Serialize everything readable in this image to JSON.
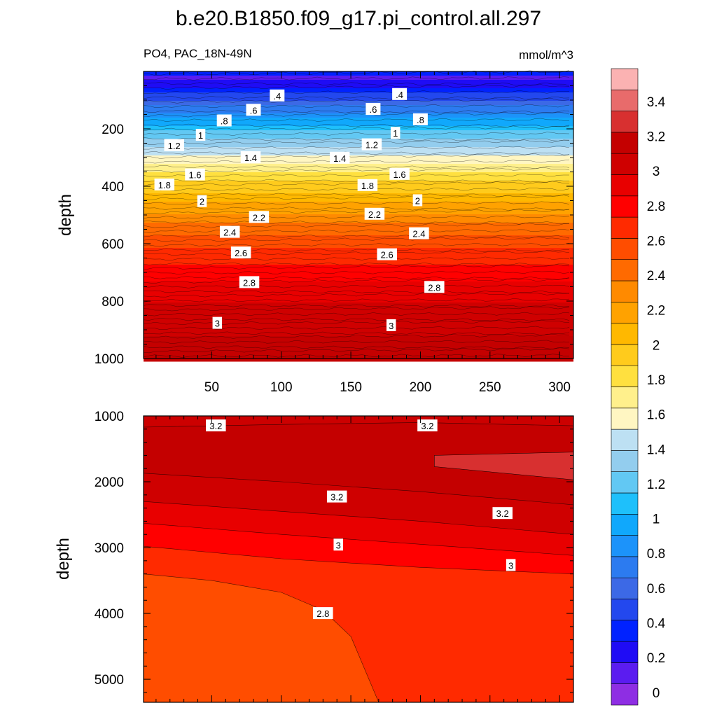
{
  "figure": {
    "title": "b.e20.B1850.f09_g17.pi_control.all.297",
    "left_string": "PO4, PAC_18N-49N",
    "units": "mmol/m^3"
  },
  "colors": {
    "levels": [
      0,
      0.2,
      0.4,
      0.6,
      0.8,
      1,
      1.2,
      1.4,
      1.6,
      1.8,
      2,
      2.2,
      2.4,
      2.6,
      2.8,
      3,
      3.2,
      3.4
    ],
    "fill": [
      "#8e2ee3",
      "#5b1cf0",
      "#1f0cf5",
      "#0022ff",
      "#2348ee",
      "#3c69e6",
      "#2c7bf0",
      "#1c93fa",
      "#10a8fc",
      "#1ec0fb",
      "#62c8f3",
      "#93cdee",
      "#bde0f3",
      "#fff6c2",
      "#fff08c",
      "#ffe03f",
      "#ffcb1c",
      "#ffb800",
      "#ffa200",
      "#ff8a00",
      "#ff6a00",
      "#ff4d00",
      "#ff2a00",
      "#ff0000",
      "#e80000",
      "#cf0000",
      "#c40000",
      "#d83030",
      "#e86b6b",
      "#fbb2b2"
    ]
  },
  "chart_data": [
    {
      "type": "heatmap",
      "panel": "upper",
      "variable": "PO4",
      "ylabel": "depth",
      "xlim": [
        1,
        310
      ],
      "ylim": [
        1000,
        0
      ],
      "x_ticks": [
        50,
        100,
        150,
        200,
        250,
        300
      ],
      "y_ticks": [
        200,
        400,
        600,
        800,
        1000
      ],
      "depth_profile": [
        [
          0,
          0.0
        ],
        [
          50,
          0.2
        ],
        [
          100,
          0.5
        ],
        [
          150,
          0.8
        ],
        [
          200,
          1.05
        ],
        [
          250,
          1.3
        ],
        [
          300,
          1.5
        ],
        [
          340,
          1.65
        ],
        [
          380,
          1.8
        ],
        [
          420,
          1.95
        ],
        [
          460,
          2.1
        ],
        [
          500,
          2.2
        ],
        [
          550,
          2.35
        ],
        [
          600,
          2.5
        ],
        [
          650,
          2.6
        ],
        [
          700,
          2.75
        ],
        [
          750,
          2.8
        ],
        [
          800,
          2.9
        ],
        [
          850,
          2.95
        ],
        [
          900,
          3.0
        ],
        [
          950,
          3.05
        ],
        [
          1000,
          3.1
        ]
      ],
      "contour_labels": [
        {
          "x": 97,
          "depth": 85,
          "value": ".4"
        },
        {
          "x": 185,
          "depth": 80,
          "value": ".4"
        },
        {
          "x": 80,
          "depth": 135,
          "value": ".6"
        },
        {
          "x": 166,
          "depth": 132,
          "value": ".6"
        },
        {
          "x": 59,
          "depth": 172,
          "value": ".8"
        },
        {
          "x": 200,
          "depth": 168,
          "value": ".8"
        },
        {
          "x": 42,
          "depth": 222,
          "value": "1"
        },
        {
          "x": 182,
          "depth": 215,
          "value": "1"
        },
        {
          "x": 23,
          "depth": 258,
          "value": "1.2"
        },
        {
          "x": 165,
          "depth": 255,
          "value": "1.2"
        },
        {
          "x": 78,
          "depth": 300,
          "value": "1.4"
        },
        {
          "x": 142,
          "depth": 302,
          "value": "1.4"
        },
        {
          "x": 38,
          "depth": 360,
          "value": "1.6"
        },
        {
          "x": 185,
          "depth": 358,
          "value": "1.6"
        },
        {
          "x": 16,
          "depth": 395,
          "value": "1.8"
        },
        {
          "x": 162,
          "depth": 397,
          "value": "1.8"
        },
        {
          "x": 43,
          "depth": 453,
          "value": "2"
        },
        {
          "x": 198,
          "depth": 450,
          "value": "2"
        },
        {
          "x": 84,
          "depth": 508,
          "value": "2.2"
        },
        {
          "x": 167,
          "depth": 497,
          "value": "2.2"
        },
        {
          "x": 63,
          "depth": 560,
          "value": "2.4"
        },
        {
          "x": 199,
          "depth": 565,
          "value": "2.4"
        },
        {
          "x": 71,
          "depth": 632,
          "value": "2.6"
        },
        {
          "x": 176,
          "depth": 638,
          "value": "2.6"
        },
        {
          "x": 77,
          "depth": 735,
          "value": "2.8"
        },
        {
          "x": 210,
          "depth": 752,
          "value": "2.8"
        },
        {
          "x": 54,
          "depth": 877,
          "value": "3"
        },
        {
          "x": 179,
          "depth": 885,
          "value": "3"
        }
      ]
    },
    {
      "type": "heatmap",
      "panel": "lower",
      "variable": "PO4",
      "ylabel": "depth",
      "xlim": [
        1,
        310
      ],
      "ylim": [
        5350,
        1000
      ],
      "y_ticks": [
        1000,
        2000,
        3000,
        4000,
        5000
      ],
      "contours": [
        {
          "value": 3.2,
          "boundary": [
            [
              1,
              1170
            ],
            [
              100,
              1130
            ],
            [
              200,
              1100
            ],
            [
              310,
              1150
            ]
          ]
        },
        {
          "value": 3.2,
          "boundary": [
            [
              1,
              1870
            ],
            [
              100,
              2000
            ],
            [
              200,
              2150
            ],
            [
              310,
              2350
            ]
          ]
        },
        {
          "value": 3.1,
          "boundary": [
            [
              1,
              2300
            ],
            [
              100,
              2450
            ],
            [
              200,
              2600
            ],
            [
              310,
              2800
            ]
          ]
        },
        {
          "value": 3.0,
          "boundary": [
            [
              1,
              2630
            ],
            [
              100,
              2800
            ],
            [
              200,
              2950
            ],
            [
              310,
              3120
            ]
          ]
        },
        {
          "value": 2.9,
          "boundary": [
            [
              1,
              2980
            ],
            [
              100,
              3170
            ],
            [
              200,
              3300
            ],
            [
              310,
              3400
            ]
          ]
        },
        {
          "value": 2.8,
          "boundary": [
            [
              1,
              3400
            ],
            [
              50,
              3500
            ],
            [
              100,
              3680
            ],
            [
              130,
              3950
            ],
            [
              150,
              4350
            ],
            [
              170,
              5350
            ]
          ]
        },
        {
          "value": 3.3,
          "region": [
            [
              210,
              1600
            ],
            [
              310,
              1550
            ],
            [
              310,
              1970
            ],
            [
              210,
              1770
            ]
          ]
        }
      ],
      "contour_labels": [
        {
          "x": 53,
          "depth": 1150,
          "value": "3.2"
        },
        {
          "x": 205,
          "depth": 1150,
          "value": "3.2"
        },
        {
          "x": 140,
          "depth": 2230,
          "value": "3.2"
        },
        {
          "x": 259,
          "depth": 2480,
          "value": "3.2"
        },
        {
          "x": 141,
          "depth": 2960,
          "value": "3"
        },
        {
          "x": 265,
          "depth": 3270,
          "value": "3"
        },
        {
          "x": 130,
          "depth": 4000,
          "value": "2.8"
        }
      ]
    },
    {
      "type": "colorbar",
      "labels": [
        "0",
        "0.2",
        "0.4",
        "0.6",
        "0.8",
        "1",
        "1.2",
        "1.4",
        "1.6",
        "1.8",
        "2",
        "2.2",
        "2.4",
        "2.6",
        "2.8",
        "3",
        "3.2",
        "3.4"
      ]
    }
  ]
}
